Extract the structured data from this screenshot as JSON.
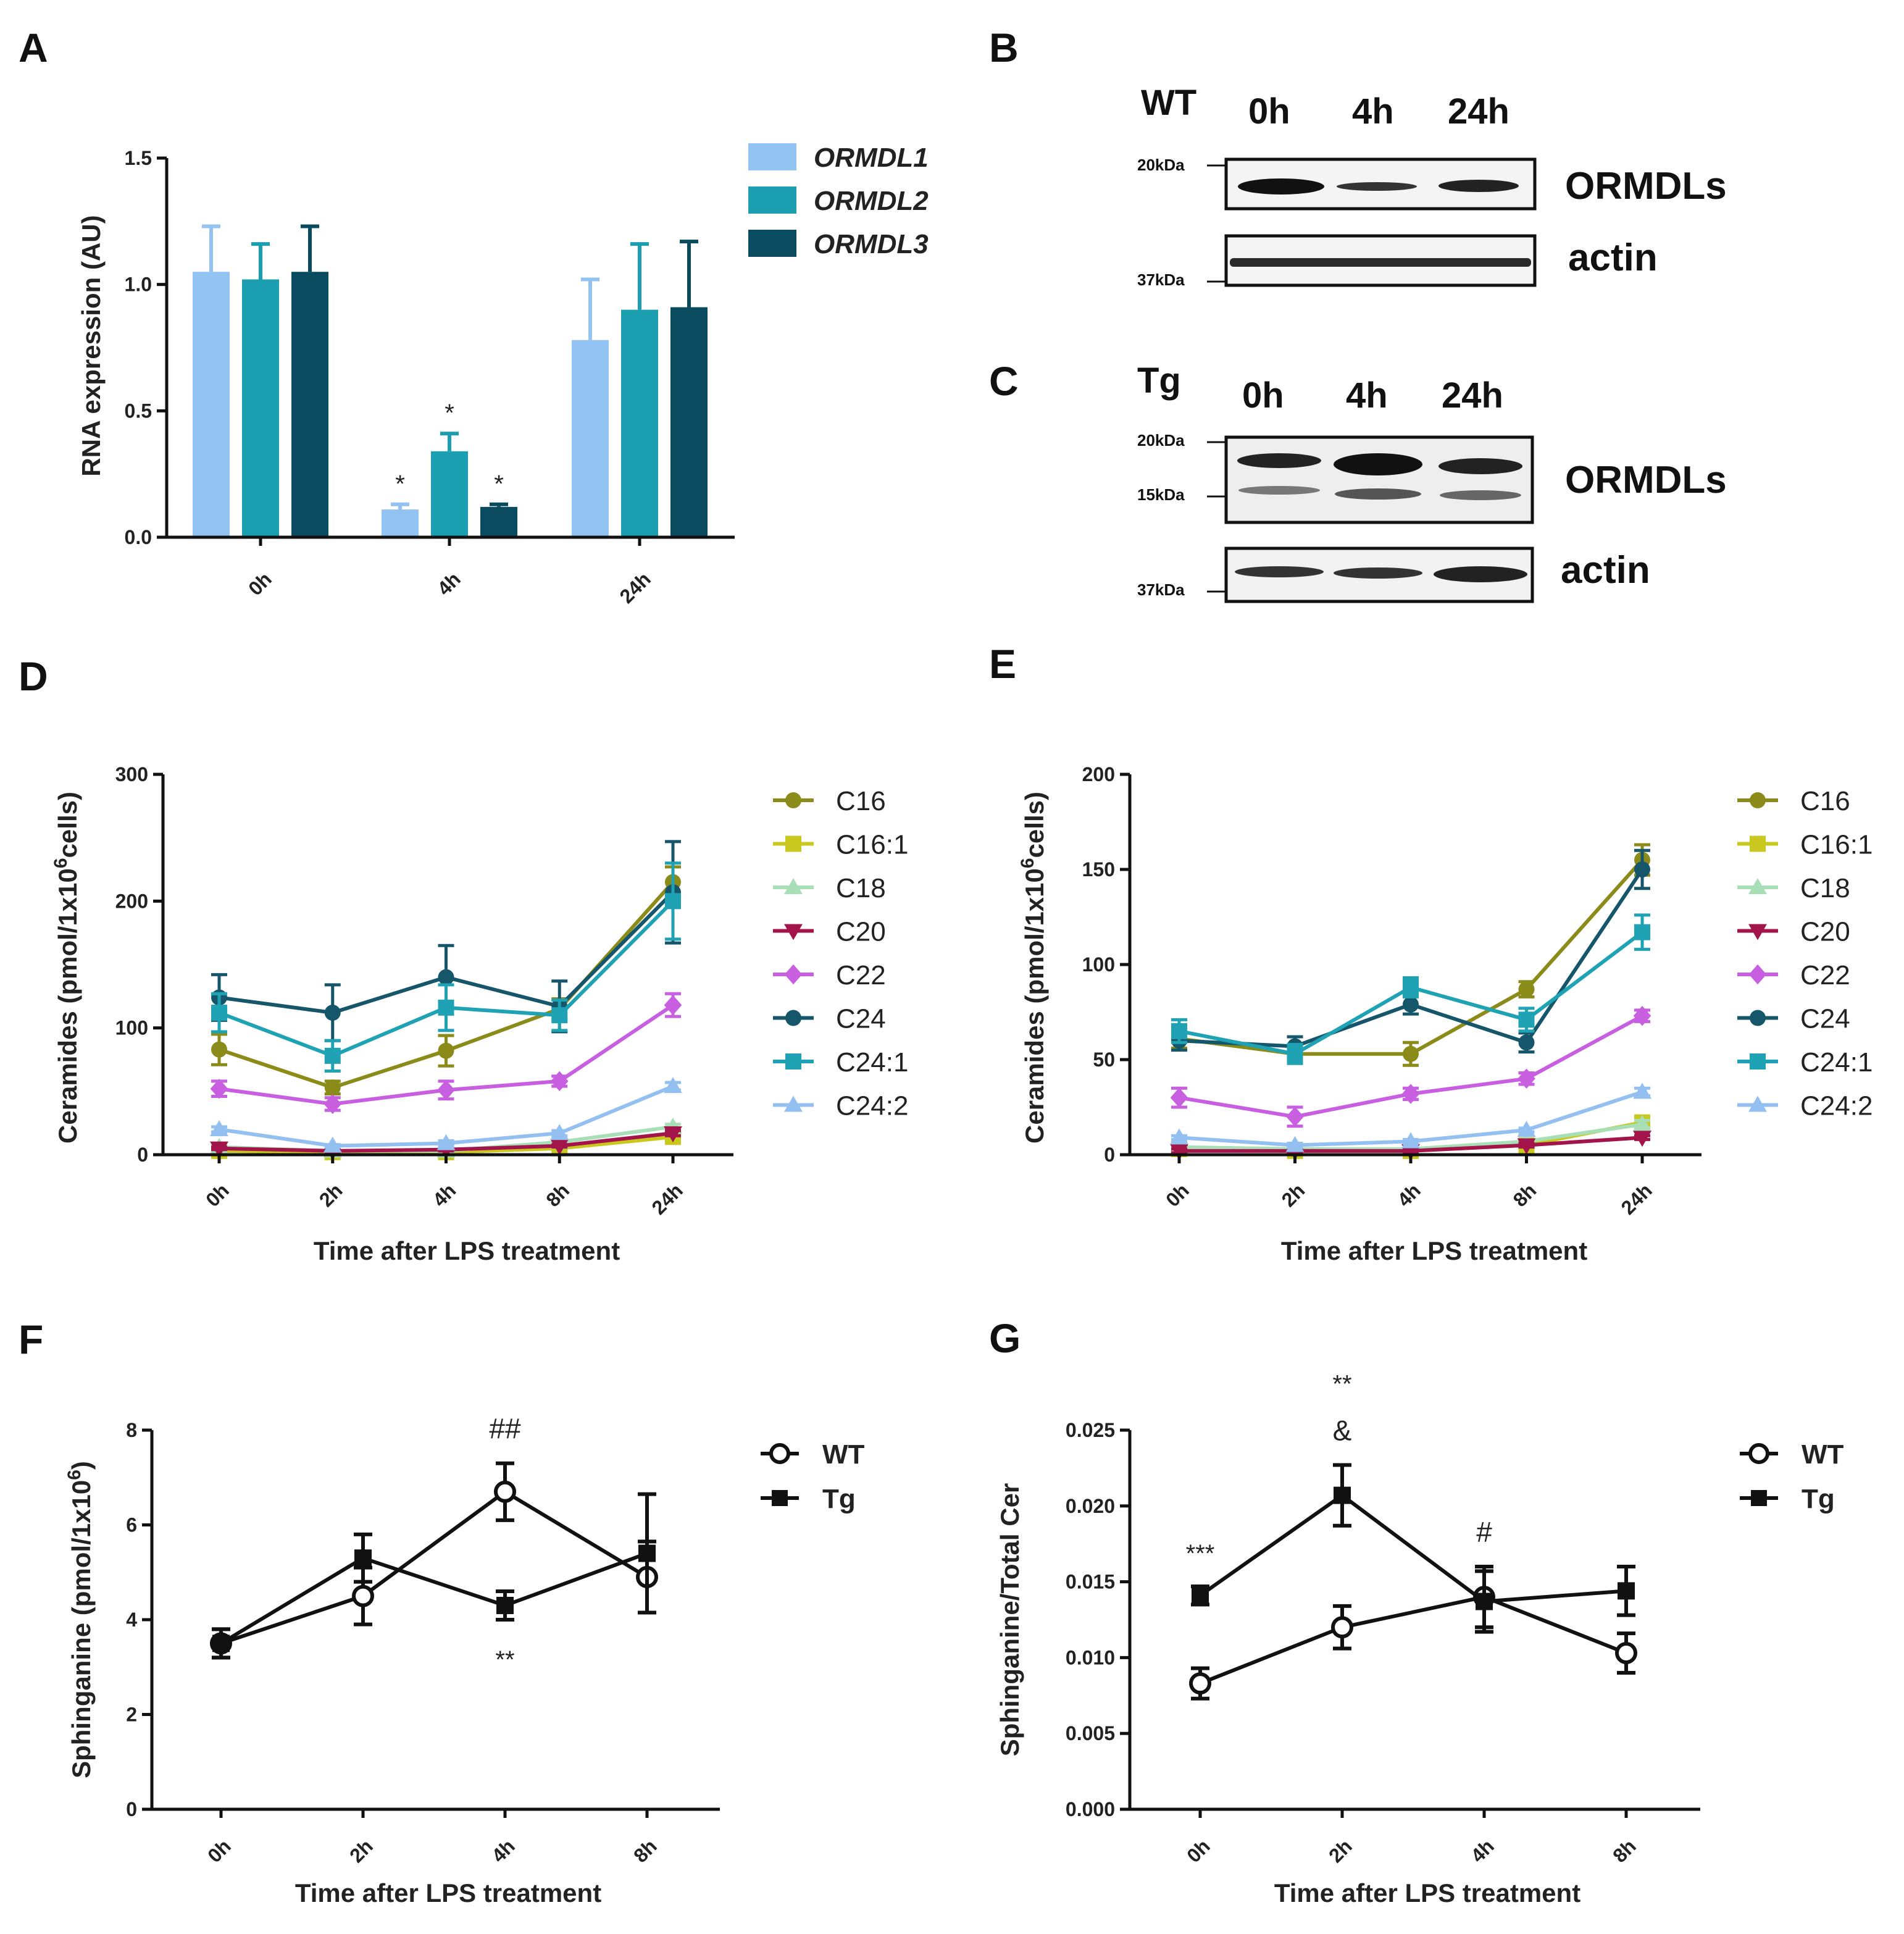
{
  "panels": {
    "A": "A",
    "B": "B",
    "C": "C",
    "D": "D",
    "E": "E",
    "F": "F",
    "G": "G"
  },
  "blots": {
    "B": {
      "genotype": "WT",
      "lanes": [
        "0h",
        "4h",
        "24h"
      ],
      "targets": [
        "ORMDLs",
        "actin"
      ],
      "markers": {
        "ormdls": [
          "20kDa"
        ],
        "actin": [
          "37kDa"
        ]
      }
    },
    "C": {
      "genotype": "Tg",
      "lanes": [
        "0h",
        "4h",
        "24h"
      ],
      "targets": [
        "ORMDLs",
        "actin"
      ],
      "markers": {
        "ormdls": [
          "20kDa",
          "15kDa"
        ],
        "actin": [
          "37kDa"
        ]
      }
    }
  },
  "colors": {
    "ormdl1": "#93c3f2",
    "ormdl2": "#1b9fb0",
    "ormdl3": "#0a4b60",
    "C16": "#8b8b1a",
    "C16:1": "#c8c81e",
    "C18": "#a8dfb6",
    "C20": "#a3144a",
    "C22": "#c85fe0",
    "C24": "#16566b",
    "C24:1": "#1fa3b4",
    "C24:2": "#93c0f0"
  },
  "chart_data": [
    {
      "id": "A",
      "type": "bar",
      "categories": [
        "0h",
        "4h",
        "24h"
      ],
      "ylabel": "RNA expression (AU)",
      "xlabel": "",
      "ylim": [
        0,
        1.5
      ],
      "yticks": [
        "0.0",
        "0.5",
        "1.0",
        "1.5"
      ],
      "series": [
        {
          "name": "ORMDL1",
          "values": [
            1.05,
            0.11,
            0.78
          ],
          "err": [
            0.18,
            0.02,
            0.24
          ]
        },
        {
          "name": "ORMDL2",
          "values": [
            1.02,
            0.34,
            0.9
          ],
          "err": [
            0.14,
            0.07,
            0.26
          ]
        },
        {
          "name": "ORMDL3",
          "values": [
            1.05,
            0.12,
            0.91
          ],
          "err": [
            0.18,
            0.01,
            0.26
          ]
        }
      ],
      "annotations": [
        {
          "text": "*",
          "category": "4h",
          "series": "ORMDL1"
        },
        {
          "text": "*",
          "category": "4h",
          "series": "ORMDL2"
        },
        {
          "text": "*",
          "category": "4h",
          "series": "ORMDL3"
        }
      ]
    },
    {
      "id": "D",
      "type": "line",
      "x": [
        "0h",
        "2h",
        "4h",
        "8h",
        "24h"
      ],
      "xlabel": "Time after LPS treatment",
      "ylabel_main": "Ceramides (pmol/1x10",
      "ylabel_sup": "6",
      "ylabel_tail": "cells)",
      "ylim": [
        0,
        300
      ],
      "yticks": [
        "0",
        "100",
        "200",
        "300"
      ],
      "series": [
        {
          "name": "C16",
          "marker": "circle",
          "values": [
            83,
            53,
            82,
            115,
            215
          ],
          "err": [
            12,
            5,
            12,
            8,
            12
          ]
        },
        {
          "name": "C16:1",
          "marker": "square",
          "values": [
            3,
            2,
            2,
            5,
            14
          ],
          "err": [
            1,
            1,
            1,
            1,
            2
          ]
        },
        {
          "name": "C18",
          "marker": "triangle",
          "values": [
            6,
            3,
            3,
            10,
            22
          ],
          "err": [
            1,
            1,
            1,
            1,
            2
          ]
        },
        {
          "name": "C20",
          "marker": "triangle-down",
          "values": [
            5,
            3,
            4,
            7,
            17
          ],
          "err": [
            1,
            1,
            1,
            1,
            2
          ]
        },
        {
          "name": "C22",
          "marker": "diamond",
          "values": [
            52,
            40,
            51,
            58,
            118
          ],
          "err": [
            6,
            5,
            7,
            4,
            9
          ]
        },
        {
          "name": "C24",
          "marker": "circle",
          "values": [
            124,
            112,
            140,
            117,
            207
          ],
          "err": [
            18,
            22,
            25,
            20,
            40
          ]
        },
        {
          "name": "C24:1",
          "marker": "square",
          "values": [
            112,
            78,
            116,
            110,
            200
          ],
          "err": [
            15,
            12,
            18,
            12,
            30
          ]
        },
        {
          "name": "C24:2",
          "marker": "triangle",
          "values": [
            20,
            7,
            9,
            17,
            54
          ],
          "err": [
            2,
            1,
            2,
            2,
            3
          ]
        }
      ]
    },
    {
      "id": "E",
      "type": "line",
      "x": [
        "0h",
        "2h",
        "4h",
        "8h",
        "24h"
      ],
      "xlabel": "Time after LPS treatment",
      "ylabel_main": "Ceramides (pmol/1x10",
      "ylabel_sup": "6",
      "ylabel_tail": "cells)",
      "ylim": [
        0,
        200
      ],
      "yticks": [
        "0",
        "50",
        "100",
        "150",
        "200"
      ],
      "series": [
        {
          "name": "C16",
          "marker": "circle",
          "values": [
            61,
            53,
            53,
            87,
            155
          ],
          "err": [
            5,
            5,
            6,
            4,
            8
          ]
        },
        {
          "name": "C16:1",
          "marker": "square",
          "values": [
            3,
            2,
            2,
            5,
            17
          ],
          "err": [
            1,
            1,
            1,
            1,
            2
          ]
        },
        {
          "name": "C18",
          "marker": "triangle",
          "values": [
            4,
            3,
            3,
            7,
            16
          ],
          "err": [
            1,
            1,
            1,
            1,
            2
          ]
        },
        {
          "name": "C20",
          "marker": "triangle-down",
          "values": [
            2,
            2,
            2,
            5,
            9
          ],
          "err": [
            1,
            1,
            1,
            1,
            1
          ]
        },
        {
          "name": "C22",
          "marker": "diamond",
          "values": [
            30,
            20,
            32,
            40,
            73
          ],
          "err": [
            5,
            5,
            3,
            3,
            3
          ]
        },
        {
          "name": "C24",
          "marker": "circle",
          "values": [
            60,
            57,
            79,
            59,
            150
          ],
          "err": [
            5,
            5,
            5,
            5,
            10
          ]
        },
        {
          "name": "C24:1",
          "marker": "square",
          "values": [
            65,
            53,
            88,
            71,
            117
          ],
          "err": [
            6,
            5,
            5,
            6,
            9
          ]
        },
        {
          "name": "C24:2",
          "marker": "triangle",
          "values": [
            9,
            5,
            7,
            13,
            33
          ],
          "err": [
            1,
            1,
            1,
            1,
            2
          ]
        }
      ]
    },
    {
      "id": "F",
      "type": "line",
      "x": [
        "0h",
        "2h",
        "4h",
        "8h"
      ],
      "xlabel": "Time after LPS treatment",
      "ylabel_main": "Sphinganine (pmol/1x10",
      "ylabel_sup": "6",
      "ylabel_tail": ")",
      "ylim": [
        0,
        8
      ],
      "yticks": [
        "0",
        "2",
        "4",
        "6",
        "8"
      ],
      "series": [
        {
          "name": "WT",
          "marker": "open-circle",
          "values": [
            3.5,
            4.5,
            6.7,
            4.9
          ],
          "err": [
            0.3,
            0.6,
            0.6,
            0.75
          ]
        },
        {
          "name": "Tg",
          "marker": "filled-square",
          "values": [
            3.5,
            5.3,
            4.3,
            5.4
          ],
          "err": [
            0.3,
            0.5,
            0.3,
            1.25
          ]
        }
      ],
      "annotations": [
        {
          "text": "##",
          "x": "4h",
          "position": "above"
        },
        {
          "text": "**",
          "x": "4h",
          "position": "below"
        }
      ]
    },
    {
      "id": "G",
      "type": "line",
      "x": [
        "0h",
        "2h",
        "4h",
        "8h"
      ],
      "xlabel": "Time after LPS treatment",
      "ylabel_main": "Sphinganine/Total Cer",
      "ylim": [
        0,
        0.025
      ],
      "yticks": [
        "0.000",
        "0.005",
        "0.010",
        "0.015",
        "0.020",
        "0.025"
      ],
      "series": [
        {
          "name": "WT",
          "marker": "open-circle",
          "values": [
            0.0083,
            0.012,
            0.014,
            0.0103
          ],
          "err": [
            0.001,
            0.0014,
            0.002,
            0.0013
          ]
        },
        {
          "name": "Tg",
          "marker": "filled-square",
          "values": [
            0.0141,
            0.0207,
            0.0137,
            0.0144
          ],
          "err": [
            0.0006,
            0.002,
            0.002,
            0.0016
          ]
        }
      ],
      "annotations": [
        {
          "text": "***",
          "x": "0h",
          "position": "above"
        },
        {
          "text": "**",
          "x": "2h",
          "position": "above-high"
        },
        {
          "text": "&",
          "x": "2h",
          "position": "above"
        },
        {
          "text": "#",
          "x": "4h",
          "position": "above"
        }
      ]
    }
  ]
}
